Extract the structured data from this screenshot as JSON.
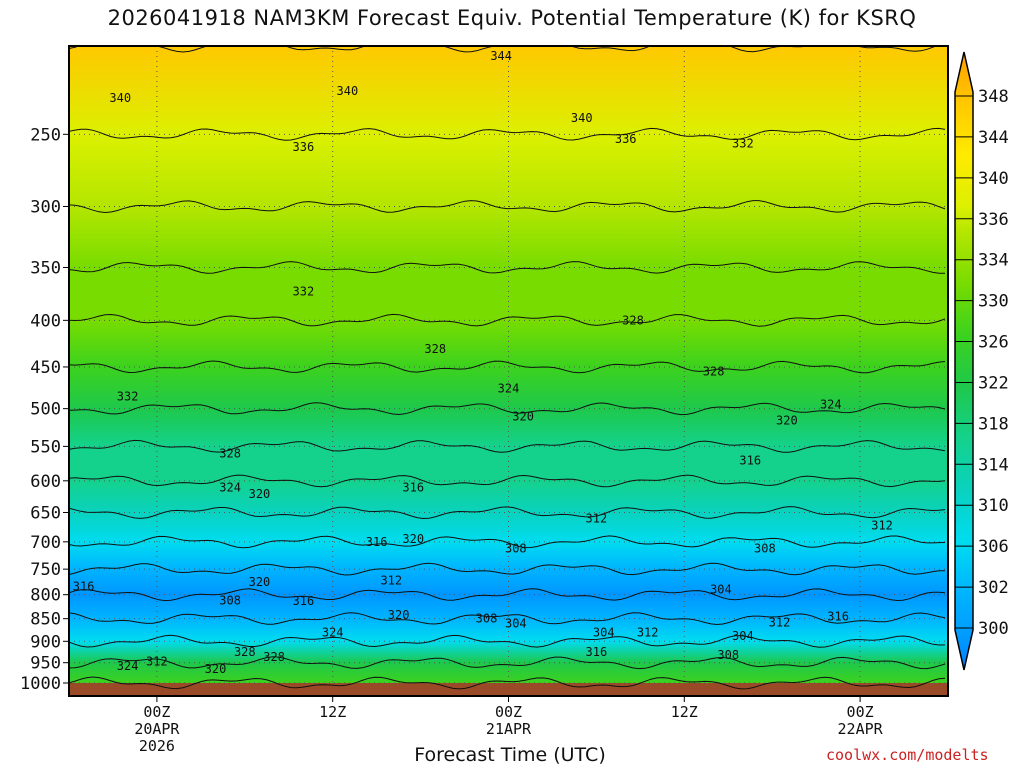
{
  "title": "2026041918 NAM3KM Forecast Equiv. Potential Temperature (K) for KSRQ",
  "watermark": "coolwx.com/modelts",
  "colors": {
    "ground": "#9a4a26",
    "frame": "#000000",
    "gridline": "#555555"
  },
  "chart_data": {
    "type": "heatmap",
    "title": "2026041918 NAM3KM Forecast Equiv. Potential Temperature (K) for KSRQ",
    "xlabel": "Forecast Time (UTC)",
    "ylabel": "",
    "x_ticks": [
      {
        "hour": 6,
        "lines": [
          "00Z",
          "20APR",
          "2026"
        ]
      },
      {
        "hour": 18,
        "lines": [
          "12Z"
        ]
      },
      {
        "hour": 30,
        "lines": [
          "00Z",
          "21APR"
        ]
      },
      {
        "hour": 42,
        "lines": [
          "12Z"
        ]
      },
      {
        "hour": 54,
        "lines": [
          "00Z",
          "22APR"
        ]
      }
    ],
    "xlim_hours": [
      0,
      60
    ],
    "y_scale": "log-pressure",
    "y_ticks": [
      250,
      300,
      350,
      400,
      450,
      500,
      550,
      600,
      650,
      700,
      750,
      800,
      850,
      900,
      950,
      1000
    ],
    "ylim": [
      1000,
      200
    ],
    "grid": true,
    "colorbar": {
      "labels": [
        348,
        344,
        340,
        336,
        334,
        330,
        326,
        322,
        318,
        314,
        310,
        306,
        302,
        300
      ],
      "levels": [
        {
          "value": 348,
          "color": "#ffa000"
        },
        {
          "value": 344,
          "color": "#ffc800"
        },
        {
          "value": 340,
          "color": "#ffeb00"
        },
        {
          "value": 336,
          "color": "#dcf000"
        },
        {
          "value": 334,
          "color": "#b4e600"
        },
        {
          "value": 330,
          "color": "#78dc00"
        },
        {
          "value": 326,
          "color": "#3cd21e"
        },
        {
          "value": 322,
          "color": "#1ec84b"
        },
        {
          "value": 318,
          "color": "#14d28c"
        },
        {
          "value": 314,
          "color": "#0ad2be"
        },
        {
          "value": 310,
          "color": "#00dcf0"
        },
        {
          "value": 306,
          "color": "#00b4ff"
        },
        {
          "value": 302,
          "color": "#0096ff"
        },
        {
          "value": 300,
          "color": "#0078ff"
        }
      ]
    },
    "profile_points": [
      {
        "pressure": 200,
        "value": 346
      },
      {
        "pressure": 250,
        "value": 339
      },
      {
        "pressure": 300,
        "value": 335
      },
      {
        "pressure": 350,
        "value": 333
      },
      {
        "pressure": 400,
        "value": 330
      },
      {
        "pressure": 450,
        "value": 327
      },
      {
        "pressure": 500,
        "value": 323
      },
      {
        "pressure": 550,
        "value": 320
      },
      {
        "pressure": 600,
        "value": 318
      },
      {
        "pressure": 650,
        "value": 315
      },
      {
        "pressure": 700,
        "value": 311
      },
      {
        "pressure": 750,
        "value": 307
      },
      {
        "pressure": 800,
        "value": 305
      },
      {
        "pressure": 850,
        "value": 308
      },
      {
        "pressure": 900,
        "value": 313
      },
      {
        "pressure": 950,
        "value": 322
      },
      {
        "pressure": 1000,
        "value": 326
      }
    ],
    "contour_labels": [
      {
        "text": "344",
        "hour": 29.5,
        "pressure": 205
      },
      {
        "text": "340",
        "hour": 3.5,
        "pressure": 228
      },
      {
        "text": "340",
        "hour": 19.0,
        "pressure": 224
      },
      {
        "text": "340",
        "hour": 35.0,
        "pressure": 240
      },
      {
        "text": "336",
        "hour": 16.0,
        "pressure": 258
      },
      {
        "text": "336",
        "hour": 38.0,
        "pressure": 253
      },
      {
        "text": "332",
        "hour": 46.0,
        "pressure": 256
      },
      {
        "text": "332",
        "hour": 16.0,
        "pressure": 372
      },
      {
        "text": "332",
        "hour": 4.0,
        "pressure": 485
      },
      {
        "text": "328",
        "hour": 38.5,
        "pressure": 400
      },
      {
        "text": "328",
        "hour": 25.0,
        "pressure": 430
      },
      {
        "text": "328",
        "hour": 44.0,
        "pressure": 455
      },
      {
        "text": "324",
        "hour": 30.0,
        "pressure": 475
      },
      {
        "text": "324",
        "hour": 52.0,
        "pressure": 495
      },
      {
        "text": "320",
        "hour": 31.0,
        "pressure": 510
      },
      {
        "text": "320",
        "hour": 49.0,
        "pressure": 515
      },
      {
        "text": "328",
        "hour": 11.0,
        "pressure": 560
      },
      {
        "text": "316",
        "hour": 46.5,
        "pressure": 570
      },
      {
        "text": "324",
        "hour": 11.0,
        "pressure": 610
      },
      {
        "text": "320",
        "hour": 13.0,
        "pressure": 620
      },
      {
        "text": "316",
        "hour": 23.5,
        "pressure": 610
      },
      {
        "text": "312",
        "hour": 36.0,
        "pressure": 660
      },
      {
        "text": "312",
        "hour": 55.5,
        "pressure": 672
      },
      {
        "text": "316",
        "hour": 21.0,
        "pressure": 700
      },
      {
        "text": "320",
        "hour": 23.5,
        "pressure": 695
      },
      {
        "text": "308",
        "hour": 30.5,
        "pressure": 712
      },
      {
        "text": "308",
        "hour": 47.5,
        "pressure": 712
      },
      {
        "text": "320",
        "hour": 13.0,
        "pressure": 775
      },
      {
        "text": "312",
        "hour": 22.0,
        "pressure": 772
      },
      {
        "text": "316",
        "hour": 1.0,
        "pressure": 784
      },
      {
        "text": "304",
        "hour": 44.5,
        "pressure": 790
      },
      {
        "text": "308",
        "hour": 11.0,
        "pressure": 812
      },
      {
        "text": "316",
        "hour": 16.0,
        "pressure": 813
      },
      {
        "text": "320",
        "hour": 22.5,
        "pressure": 842
      },
      {
        "text": "308",
        "hour": 28.5,
        "pressure": 850
      },
      {
        "text": "304",
        "hour": 30.5,
        "pressure": 860
      },
      {
        "text": "304",
        "hour": 36.5,
        "pressure": 880
      },
      {
        "text": "312",
        "hour": 39.5,
        "pressure": 880
      },
      {
        "text": "312",
        "hour": 48.5,
        "pressure": 858
      },
      {
        "text": "316",
        "hour": 52.5,
        "pressure": 845
      },
      {
        "text": "324",
        "hour": 18.0,
        "pressure": 880
      },
      {
        "text": "304",
        "hour": 46.0,
        "pressure": 888
      },
      {
        "text": "316",
        "hour": 36.0,
        "pressure": 925
      },
      {
        "text": "308",
        "hour": 45.0,
        "pressure": 932
      },
      {
        "text": "328",
        "hour": 12.0,
        "pressure": 925
      },
      {
        "text": "328",
        "hour": 14.0,
        "pressure": 937
      },
      {
        "text": "324",
        "hour": 4.0,
        "pressure": 958
      },
      {
        "text": "312",
        "hour": 6.0,
        "pressure": 947
      },
      {
        "text": "320",
        "hour": 10.0,
        "pressure": 965
      }
    ]
  }
}
